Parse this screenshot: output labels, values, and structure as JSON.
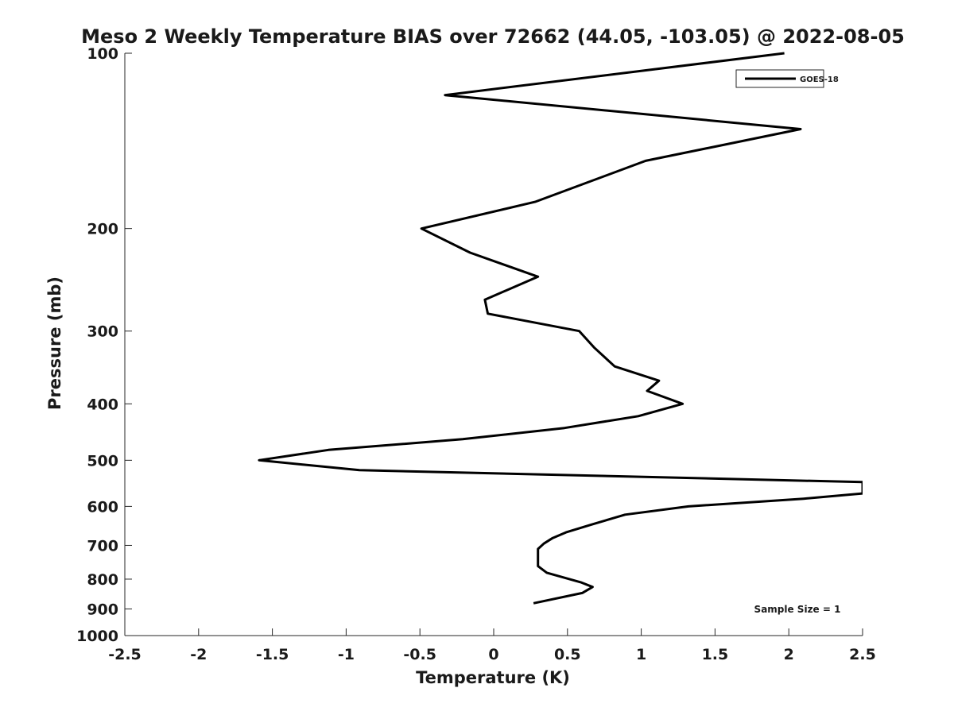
{
  "chart_data": {
    "type": "line",
    "title": "Meso 2 Weekly Temperature BIAS over 72662 (44.05, -103.05) @ 2022-08-05",
    "xlabel": "Temperature (K)",
    "ylabel": "Pressure (mb)",
    "xlim": [
      -2.5,
      2.5
    ],
    "ylim": [
      1000,
      100
    ],
    "y_scale": "log",
    "y_reversed": true,
    "x_ticks": [
      -2.5,
      -2,
      -1.5,
      -1,
      -0.5,
      0,
      0.5,
      1,
      1.5,
      2,
      2.5
    ],
    "x_tick_labels": [
      "-2.5",
      "-2",
      "-1.5",
      "-1",
      "-0.5",
      "0",
      "0.5",
      "1",
      "1.5",
      "2",
      "2.5"
    ],
    "y_ticks": [
      100,
      200,
      300,
      400,
      500,
      600,
      700,
      800,
      900,
      1000
    ],
    "y_tick_labels": [
      "100",
      "200",
      "300",
      "400",
      "500",
      "600",
      "700",
      "800",
      "900",
      "1000"
    ],
    "grid": false,
    "legend_position": "top-right",
    "annotation": "Sample Size = 1",
    "series": [
      {
        "name": "GOES-18",
        "color": "#000000",
        "points": [
          {
            "x": 1.97,
            "y": 100
          },
          {
            "x": -0.33,
            "y": 118
          },
          {
            "x": 2.08,
            "y": 135
          },
          {
            "x": 1.03,
            "y": 153
          },
          {
            "x": 0.28,
            "y": 180
          },
          {
            "x": -0.49,
            "y": 200
          },
          {
            "x": -0.16,
            "y": 220
          },
          {
            "x": 0.3,
            "y": 242
          },
          {
            "x": -0.06,
            "y": 265
          },
          {
            "x": -0.04,
            "y": 280
          },
          {
            "x": 0.58,
            "y": 300
          },
          {
            "x": 0.68,
            "y": 320
          },
          {
            "x": 0.82,
            "y": 345
          },
          {
            "x": 1.12,
            "y": 365
          },
          {
            "x": 1.04,
            "y": 380
          },
          {
            "x": 1.28,
            "y": 400
          },
          {
            "x": 0.98,
            "y": 420
          },
          {
            "x": 0.48,
            "y": 440
          },
          {
            "x": -0.21,
            "y": 460
          },
          {
            "x": -1.12,
            "y": 480
          },
          {
            "x": -1.59,
            "y": 500
          },
          {
            "x": -0.91,
            "y": 520
          },
          {
            "x": 2.5,
            "y": 545
          },
          {
            "x": 2.5,
            "y": 570
          },
          {
            "x": 2.1,
            "y": 582
          },
          {
            "x": 1.32,
            "y": 600
          },
          {
            "x": 0.89,
            "y": 620
          },
          {
            "x": 0.66,
            "y": 645
          },
          {
            "x": 0.49,
            "y": 665
          },
          {
            "x": 0.4,
            "y": 680
          },
          {
            "x": 0.34,
            "y": 695
          },
          {
            "x": 0.3,
            "y": 710
          },
          {
            "x": 0.3,
            "y": 760
          },
          {
            "x": 0.36,
            "y": 780
          },
          {
            "x": 0.59,
            "y": 810
          },
          {
            "x": 0.67,
            "y": 825
          },
          {
            "x": 0.6,
            "y": 845
          },
          {
            "x": 0.27,
            "y": 880
          }
        ]
      }
    ]
  }
}
